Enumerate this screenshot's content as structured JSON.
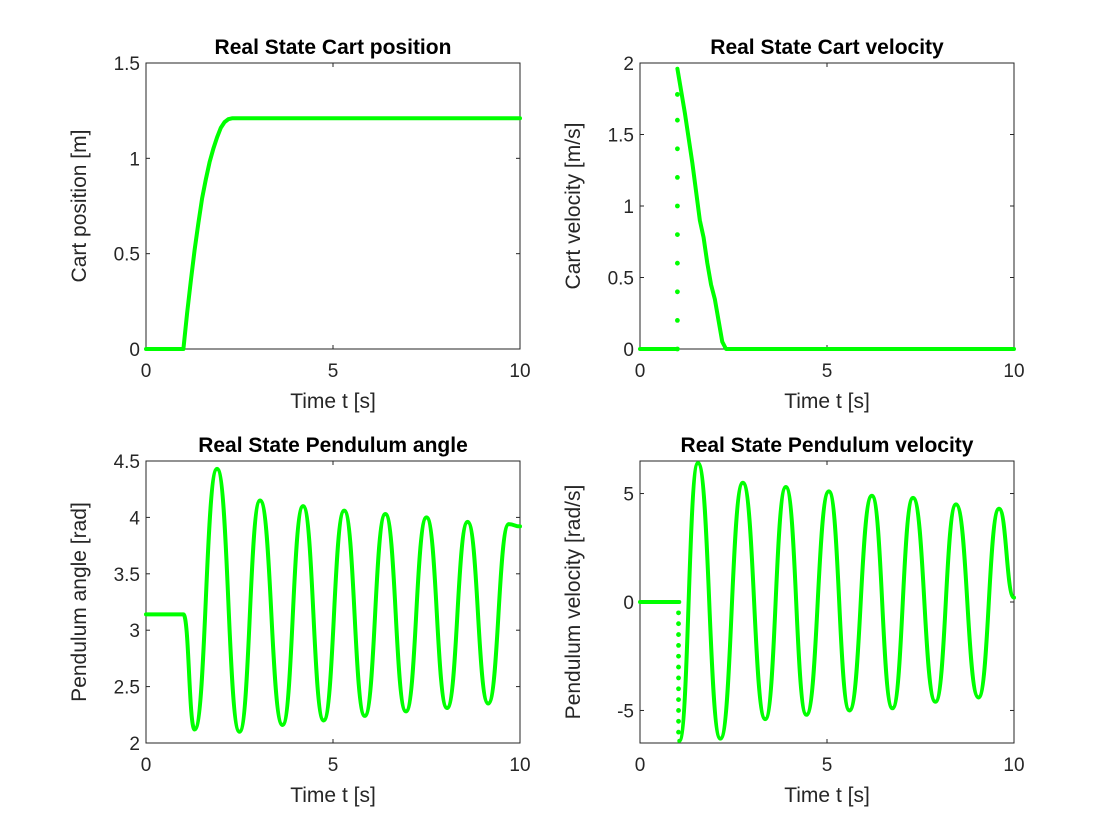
{
  "colors": {
    "line": "#00ff00",
    "axis": "#262626",
    "background": "#ffffff"
  },
  "chart_data": [
    {
      "type": "line",
      "title": "Real State Cart position",
      "xlabel": "Time t [s]",
      "ylabel": "Cart position [m]",
      "xlim": [
        0,
        10
      ],
      "ylim": [
        0,
        1.5
      ],
      "xticks": [
        0,
        5,
        10
      ],
      "yticks": [
        0,
        0.5,
        1,
        1.5
      ],
      "ytick_labels": [
        "0",
        "0.5",
        "1",
        "1.5"
      ],
      "grid": false,
      "series": [
        {
          "style": "solid",
          "x": [
            0,
            1.0,
            1.1,
            1.2,
            1.3,
            1.4,
            1.5,
            1.6,
            1.7,
            1.8,
            1.9,
            2.0,
            2.1,
            2.2,
            2.3,
            2.4,
            10
          ],
          "y": [
            0,
            0,
            0.19,
            0.36,
            0.52,
            0.66,
            0.79,
            0.89,
            0.98,
            1.05,
            1.11,
            1.16,
            1.19,
            1.205,
            1.21,
            1.21,
            1.21
          ]
        }
      ]
    },
    {
      "type": "line",
      "title": "Real State Cart velocity",
      "xlabel": "Time t [s]",
      "ylabel": "Cart velocity [m/s]",
      "xlim": [
        0,
        10
      ],
      "ylim": [
        0,
        2
      ],
      "xticks": [
        0,
        5,
        10
      ],
      "yticks": [
        0,
        0.5,
        1,
        1.5,
        2
      ],
      "ytick_labels": [
        "0",
        "0.5",
        "1",
        "1.5",
        "2"
      ],
      "grid": false,
      "series": [
        {
          "style": "solid",
          "x": [
            0,
            1.0
          ],
          "y": [
            0,
            0
          ]
        },
        {
          "style": "dots",
          "x": [
            1.0,
            1.0,
            1.0,
            1.0,
            1.0,
            1.0,
            1.0,
            1.0,
            1.0,
            1.0
          ],
          "y": [
            0,
            0.2,
            0.4,
            0.6,
            0.8,
            1.0,
            1.2,
            1.4,
            1.6,
            1.78
          ]
        },
        {
          "style": "solid",
          "x": [
            1.0,
            1.2,
            1.4,
            1.6,
            1.7,
            1.8,
            1.9,
            2.0,
            2.1,
            2.2,
            2.3,
            2.35,
            10
          ],
          "y": [
            1.96,
            1.65,
            1.3,
            0.9,
            0.78,
            0.6,
            0.45,
            0.35,
            0.2,
            0.05,
            0,
            0,
            0
          ]
        }
      ]
    },
    {
      "type": "line",
      "title": "Real State Pendulum angle",
      "xlabel": "Time t [s]",
      "ylabel": "Pendulum angle [rad]",
      "xlim": [
        0,
        10
      ],
      "ylim": [
        2,
        4.5
      ],
      "xticks": [
        0,
        5,
        10
      ],
      "yticks": [
        2,
        2.5,
        3,
        3.5,
        4,
        4.5
      ],
      "ytick_labels": [
        "2",
        "2.5",
        "3",
        "3.5",
        "4",
        "4.5"
      ],
      "grid": false,
      "series": [
        {
          "style": "solid",
          "x": [
            0,
            1.0,
            1.3,
            1.9,
            2.5,
            3.05,
            3.65,
            4.2,
            4.75,
            5.3,
            5.85,
            6.4,
            6.95,
            7.5,
            8.05,
            8.6,
            9.15,
            9.7,
            10
          ],
          "y": [
            3.14,
            3.14,
            2.12,
            4.43,
            2.1,
            4.15,
            2.16,
            4.1,
            2.2,
            4.06,
            2.24,
            4.03,
            2.28,
            4.0,
            2.31,
            3.96,
            2.35,
            3.94,
            3.92
          ],
          "smooth": true
        }
      ]
    },
    {
      "type": "line",
      "title": "Real State Pendulum velocity",
      "xlabel": "Time t [s]",
      "ylabel": "Pendulum velocity [rad/s]",
      "xlim": [
        0,
        10
      ],
      "ylim": [
        -6.5,
        6.5
      ],
      "xticks": [
        0,
        5,
        10
      ],
      "yticks": [
        -5,
        0,
        5
      ],
      "ytick_labels": [
        "-5",
        "0",
        "5"
      ],
      "grid": false,
      "series": [
        {
          "style": "solid",
          "x": [
            0,
            1.05
          ],
          "y": [
            0,
            0
          ]
        },
        {
          "style": "dots",
          "x": [
            1.03,
            1.03,
            1.03,
            1.03,
            1.03,
            1.03,
            1.03,
            1.03,
            1.03,
            1.03,
            1.03,
            1.03
          ],
          "y": [
            -0.5,
            -1.0,
            -1.5,
            -2.0,
            -2.5,
            -3.0,
            -3.5,
            -4.0,
            -4.5,
            -5.0,
            -5.5,
            -6.0
          ]
        },
        {
          "style": "solid",
          "x": [
            1.05,
            1.55,
            2.15,
            2.75,
            3.35,
            3.9,
            4.45,
            5.05,
            5.6,
            6.2,
            6.75,
            7.3,
            7.9,
            8.45,
            9.05,
            9.6,
            10
          ],
          "y": [
            -6.4,
            6.4,
            -6.3,
            5.5,
            -5.4,
            5.3,
            -5.2,
            5.1,
            -5.0,
            4.9,
            -4.9,
            4.8,
            -4.6,
            4.5,
            -4.4,
            4.3,
            0.2
          ],
          "smooth": true
        }
      ]
    }
  ]
}
